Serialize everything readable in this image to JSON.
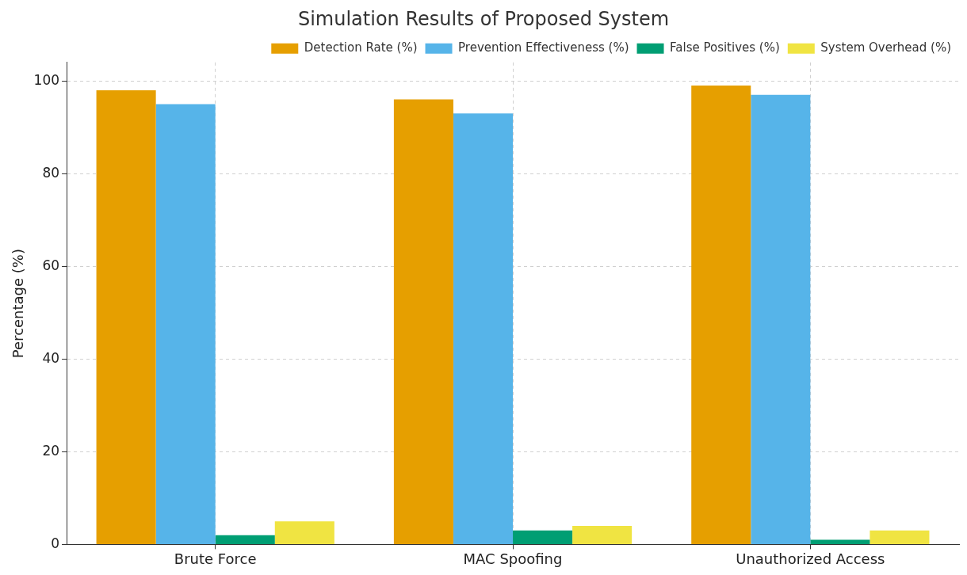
{
  "chart_data": {
    "type": "bar",
    "title": "Simulation Results of Proposed System",
    "ylabel": "Percentage (%)",
    "categories": [
      "Brute Force",
      "MAC Spoofing",
      "Unauthorized Access"
    ],
    "series": [
      {
        "name": "Detection Rate (%)",
        "color": "#e69f00",
        "values": [
          98,
          96,
          99
        ]
      },
      {
        "name": "Prevention Effectiveness (%)",
        "color": "#56b4e9",
        "values": [
          95,
          93,
          97
        ]
      },
      {
        "name": "False Positives (%)",
        "color": "#009e73",
        "values": [
          2,
          3,
          1
        ]
      },
      {
        "name": "System Overhead (%)",
        "color": "#f0e442",
        "values": [
          5,
          4,
          3
        ]
      }
    ],
    "ylim": [
      0,
      104
    ],
    "yticks": [
      0,
      20,
      40,
      60,
      80,
      100
    ],
    "grid": true,
    "legend": "top right"
  }
}
